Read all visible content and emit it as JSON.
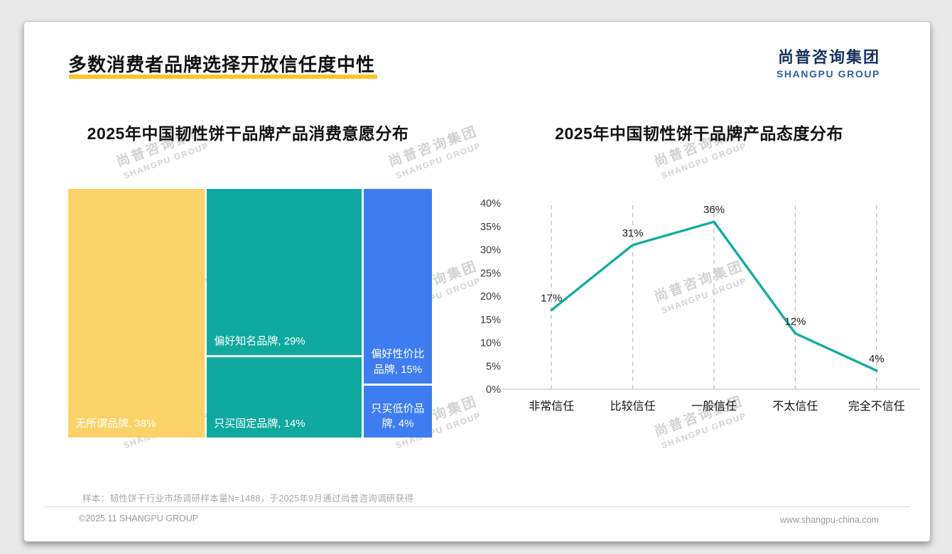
{
  "slide": {
    "title": "多数消费者品牌选择开放信任度中性",
    "footnote": "样本：韧性饼干行业市场调研样本量N=1488，于2025年9月通过尚普咨询调研获得",
    "footer_left": "©2025.11 SHANGPU GROUP",
    "footer_right": "www.shangpu-china.com"
  },
  "brand": {
    "cn": "尚普咨询集团",
    "en": "SHANGPU GROUP"
  },
  "watermark": {
    "cn": "尚普咨询集团",
    "en": "SHANGPU GROUP"
  },
  "colors": {
    "yellow": "#FBD267",
    "teal": "#0FA9A0",
    "blue": "#3E7DF0",
    "line": "#17ABA3",
    "accent": "#FFC52F"
  },
  "chart_data": [
    {
      "type": "treemap",
      "title": "2025年中国韧性饼干品牌产品消费意愿分布",
      "columns": [
        {
          "color": "#FBD267",
          "segments": [
            {
              "label": "无所谓品牌",
              "value": 38,
              "align": "left"
            }
          ]
        },
        {
          "color": "#0FA9A0",
          "segments": [
            {
              "label": "偏好知名品牌",
              "value": 29,
              "align": "left"
            },
            {
              "label": "只买固定品牌",
              "value": 14,
              "align": "left"
            }
          ]
        },
        {
          "color": "#3E7DF0",
          "segments": [
            {
              "label": "偏好性价比品牌",
              "value": 15,
              "align": "center"
            },
            {
              "label": "只买低价品牌",
              "value": 4,
              "align": "center"
            }
          ]
        }
      ]
    },
    {
      "type": "line",
      "title": "2025年中国韧性饼干品牌产品态度分布",
      "categories": [
        "非常信任",
        "比较信任",
        "一般信任",
        "不太信任",
        "完全不信任"
      ],
      "values": [
        17,
        31,
        36,
        12,
        4
      ],
      "ylim": [
        0,
        40
      ],
      "ytick_step": 5,
      "ytick_suffix": "%",
      "line_color": "#17ABA3",
      "grid": "dashed-vertical",
      "legend": "none"
    }
  ]
}
